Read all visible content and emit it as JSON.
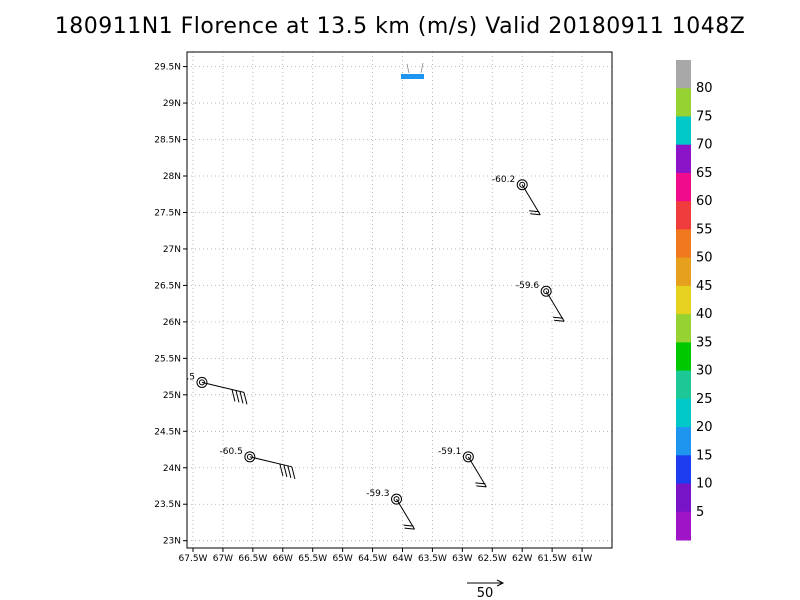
{
  "title": "180911N1 Florence at 13.5 km (m/s) Valid 20180911  1048Z",
  "map": {
    "lon_ticks": [
      "67.5W",
      "67W",
      "66.5W",
      "66W",
      "65.5W",
      "65W",
      "64.5W",
      "64W",
      "63.5W",
      "63W",
      "62.5W",
      "62W",
      "61.5W",
      "61W"
    ],
    "lat_ticks": [
      "23N",
      "23.5N",
      "24N",
      "24.5N",
      "25N",
      "25.5N",
      "26N",
      "26.5N",
      "27N",
      "27.5N",
      "28N",
      "28.5N",
      "29N",
      "29.5N"
    ],
    "lon_range": [
      -67.6,
      -60.5
    ],
    "lat_range": [
      22.9,
      29.7
    ],
    "gridlines": "dotted"
  },
  "observations": [
    {
      "label": ".5",
      "lon": -67.35,
      "lat": 25.17,
      "speed_class": "strong"
    },
    {
      "label": "-60.5",
      "lon": -66.55,
      "lat": 24.15,
      "speed_class": "strong"
    },
    {
      "label": "-59.3",
      "lon": -64.1,
      "lat": 23.57,
      "speed_class": "light"
    },
    {
      "label": "-59.1",
      "lon": -62.9,
      "lat": 24.15,
      "speed_class": "light"
    },
    {
      "label": "-59.6",
      "lon": -61.6,
      "lat": 26.42,
      "speed_class": "light"
    },
    {
      "label": "-60.2",
      "lon": -62.0,
      "lat": 27.88,
      "speed_class": "light"
    }
  ],
  "legend": {
    "labels": [
      "80",
      "75",
      "70",
      "65",
      "60",
      "55",
      "50",
      "45",
      "40",
      "35",
      "30",
      "25",
      "20",
      "15",
      "10",
      "5"
    ],
    "colors": [
      "#a8a8a8",
      "#96d232",
      "#00c8c8",
      "#8c14c8",
      "#f00a8c",
      "#f03c3c",
      "#f0781e",
      "#e6a01e",
      "#e6d21e",
      "#96d232",
      "#00c800",
      "#1ec896",
      "#00c8c8",
      "#1e96f0",
      "#1e3cf0",
      "#7814c8",
      "#a014c8"
    ]
  },
  "reference_vector": {
    "label": "50"
  }
}
